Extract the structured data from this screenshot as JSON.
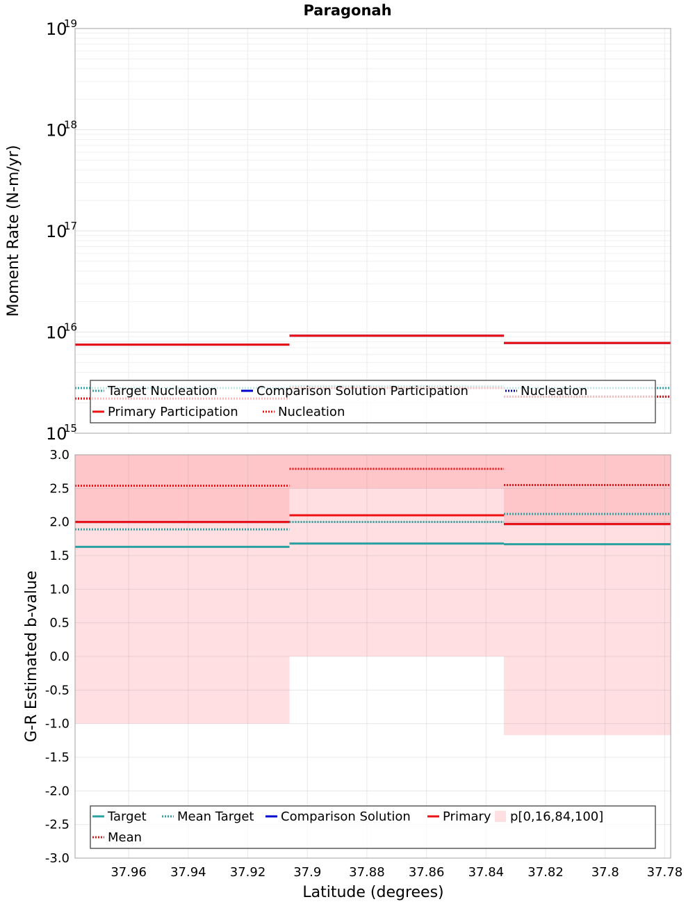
{
  "chart_data": [
    {
      "type": "line",
      "title": "Paragonah",
      "ylabel": "Moment Rate (N-m/yr)",
      "xlabel": "",
      "yscale": "log",
      "ylim": [
        1000000000000000.0,
        1e+19
      ],
      "xlim": [
        37.978,
        37.778
      ],
      "x_reversed": true,
      "ytick_bases": [
        "10",
        "10",
        "10",
        "10",
        "10"
      ],
      "ytick_exponents": [
        "15",
        "16",
        "17",
        "18",
        "19"
      ],
      "ytick_values": [
        1000000000000000.0,
        1e+16,
        1e+17,
        1e+18,
        1e+19
      ],
      "bin_edges": [
        37.978,
        37.906,
        37.834,
        37.778
      ],
      "grid": true,
      "legend_position": "lower-center",
      "series": [
        {
          "name": "Target Nucleation",
          "style": "dotted",
          "color": "#2aa8a8",
          "values": [
            2800000000000000.0,
            2900000000000000.0,
            2800000000000000.0
          ]
        },
        {
          "name": "Comparison Solution Participation",
          "style": "solid",
          "color": "#0000cc",
          "values": [
            7500000000000000.0,
            9200000000000000.0,
            7800000000000000.0
          ]
        },
        {
          "name": "Nucleation",
          "style": "dotted",
          "color": "#0000cc",
          "values": [
            2200000000000000.0,
            2800000000000000.0,
            2300000000000000.0
          ]
        },
        {
          "name": "Primary Participation",
          "style": "solid",
          "color": "#ee1111",
          "values": [
            7500000000000000.0,
            9200000000000000.0,
            7800000000000000.0
          ]
        },
        {
          "name": "Nucleation",
          "style": "dotted",
          "color": "#ee1111",
          "values": [
            2200000000000000.0,
            2800000000000000.0,
            2300000000000000.0
          ]
        }
      ]
    },
    {
      "type": "line",
      "title": "",
      "ylabel": "G-R Estimated b-value",
      "xlabel": "Latitude (degrees)",
      "ylim": [
        -3.0,
        3.0
      ],
      "xlim": [
        37.978,
        37.778
      ],
      "x_reversed": true,
      "yticks": [
        "3.0",
        "2.5",
        "2.0",
        "1.5",
        "1.0",
        "0.5",
        "0.0",
        "-0.5",
        "-1.0",
        "-1.5",
        "-2.0",
        "-2.5",
        "-3.0"
      ],
      "xticks": [
        "37.96",
        "37.94",
        "37.92",
        "37.9",
        "37.88",
        "37.86",
        "37.84",
        "37.82",
        "37.8",
        "37.78"
      ],
      "bin_edges": [
        37.978,
        37.906,
        37.834,
        37.778
      ],
      "grid": true,
      "legend_position": "lower-center",
      "bands": {
        "name": "p[0,16,84,100]",
        "outer_color": "#ffdfe1",
        "inner_color": "#ffc6c9",
        "p0": [
          -1.0,
          0.0,
          -1.17
        ],
        "p16": [
          2.02,
          2.5,
          1.97
        ],
        "p84": [
          3.0,
          3.0,
          3.0
        ],
        "p100": [
          3.0,
          3.0,
          3.0
        ]
      },
      "series": [
        {
          "name": "Target",
          "style": "solid",
          "color": "#2aa0a0",
          "values": [
            1.63,
            1.68,
            1.67
          ]
        },
        {
          "name": "Mean Target",
          "style": "dotted",
          "color": "#2aa0a0",
          "values": [
            1.89,
            2.0,
            2.12
          ]
        },
        {
          "name": "Comparison Solution",
          "style": "solid",
          "color": "#0000cc",
          "values": [
            2.0,
            2.1,
            1.97
          ]
        },
        {
          "name": "Primary",
          "style": "solid",
          "color": "#ee1111",
          "values": [
            2.0,
            2.1,
            1.97
          ]
        },
        {
          "name": "Mean",
          "style": "dotted",
          "color": "#ee1111",
          "values": [
            2.54,
            2.79,
            2.55
          ]
        }
      ]
    }
  ]
}
